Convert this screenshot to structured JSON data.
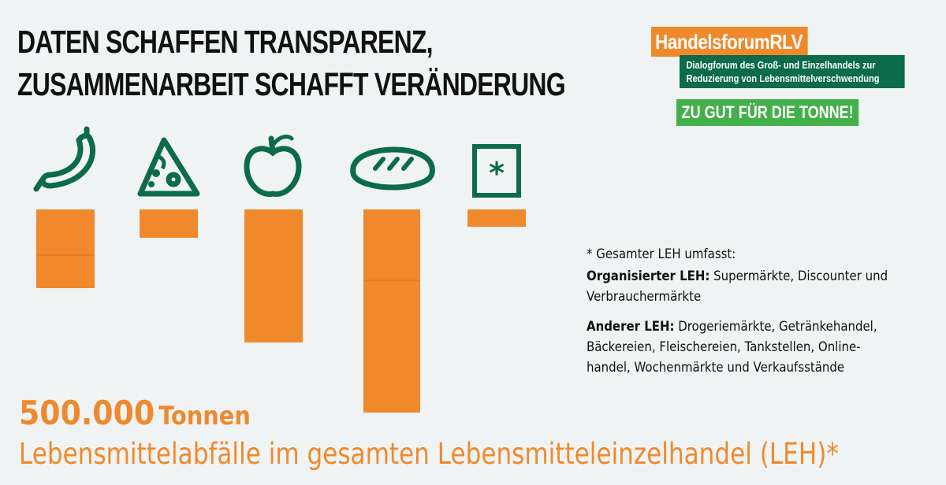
{
  "headline": {
    "line1": "DATEN SCHAFFEN TRANSPARENZ,",
    "line2": "ZUSAMMENARBEIT SCHAFFT VERÄNDERUNG"
  },
  "logo": {
    "title": "HandelsforumRLV",
    "subtitle_line1": "Dialogforum des Groß- und Einzelhandels zur",
    "subtitle_line2": "Reduzierung von Lebensmittelverschwendung",
    "slogan": "ZU GUT FÜR DIE TONNE!"
  },
  "note": {
    "intro": "* Gesamter LEH umfasst:",
    "org_label": "Organisierter LEH:",
    "org_text": " Supermärkte, Discounter und Verbrauchermärkte",
    "other_label": "Anderer LEH:",
    "other_text": " Drogeriemärkte, Getränkehandel, Bäckereien, Fleischereien, Tankstellen, Online-handel, Wochenmärkte und Verkaufsstände"
  },
  "total": {
    "number": "500.000",
    "unit": "Tonnen",
    "caption": "Lebensmittelabfälle im gesamten Lebensmitteleinzelhandel (LEH)*"
  },
  "colors": {
    "bar": "#f0892c",
    "icon": "#0b6b4a",
    "slogan": "#43b049"
  },
  "chart_data": {
    "type": "bar",
    "categories": [
      "sausage-icon",
      "cheese-icon",
      "apple-icon",
      "bread-icon",
      "other-icon"
    ],
    "values": [
      100,
      36,
      169,
      258,
      22
    ],
    "unit": "relative",
    "segment_breaks": [
      [
        58
      ],
      [],
      [],
      [
        90
      ],
      []
    ]
  }
}
